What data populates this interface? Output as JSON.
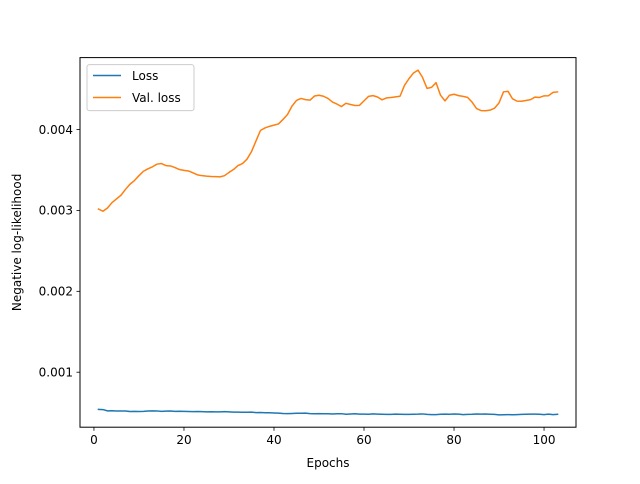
{
  "chart_data": {
    "type": "line",
    "title": "",
    "xlabel": "Epochs",
    "ylabel": "Negative log-likelihood",
    "xlim": [
      -3.1,
      107.1
    ],
    "ylim": [
      0.00032,
      0.00489
    ],
    "x_ticks": [
      0,
      20,
      40,
      60,
      80,
      100
    ],
    "x_tick_labels": [
      "0",
      "20",
      "40",
      "60",
      "80",
      "100"
    ],
    "y_ticks": [
      0.001,
      0.002,
      0.003,
      0.004
    ],
    "y_tick_labels": [
      "0.001",
      "0.002",
      "0.003",
      "0.004"
    ],
    "grid": false,
    "legend_position": "upper-left",
    "series": [
      {
        "name": "Loss",
        "color": "#1f77b4",
        "x": [
          1,
          2,
          3,
          4,
          5,
          6,
          7,
          8,
          9,
          10,
          11,
          12,
          13,
          14,
          15,
          16,
          17,
          18,
          19,
          20,
          21,
          22,
          23,
          24,
          25,
          26,
          27,
          28,
          29,
          30,
          31,
          32,
          33,
          34,
          35,
          36,
          37,
          38,
          39,
          40,
          41,
          42,
          43,
          44,
          45,
          46,
          47,
          48,
          49,
          50,
          51,
          52,
          53,
          54,
          55,
          56,
          57,
          58,
          59,
          60,
          61,
          62,
          63,
          64,
          65,
          66,
          67,
          68,
          69,
          70,
          71,
          72,
          73,
          74,
          75,
          76,
          77,
          78,
          79,
          80,
          81,
          82,
          83,
          84,
          85,
          86,
          87,
          88,
          89,
          90,
          91,
          92,
          93,
          94,
          95,
          96,
          97,
          98,
          99,
          100,
          101,
          102,
          103
        ],
        "y": [
          0.00054,
          0.000538,
          0.000522,
          0.000524,
          0.00052,
          0.000521,
          0.00052,
          0.000514,
          0.000516,
          0.000514,
          0.000516,
          0.00052,
          0.000522,
          0.000521,
          0.000515,
          0.000519,
          0.00052,
          0.000516,
          0.000518,
          0.000516,
          0.000514,
          0.000513,
          0.000514,
          0.000512,
          0.00051,
          0.000511,
          0.000509,
          0.00051,
          0.000512,
          0.000509,
          0.000506,
          0.000506,
          0.000505,
          0.000505,
          0.000506,
          0.0005,
          0.000502,
          0.000499,
          0.000498,
          0.000496,
          0.000494,
          0.00049,
          0.000488,
          0.00049,
          0.000492,
          0.000493,
          0.000494,
          0.000488,
          0.000487,
          0.000488,
          0.000486,
          0.000487,
          0.000484,
          0.000486,
          0.000487,
          0.00048,
          0.000484,
          0.000486,
          0.000482,
          0.000481,
          0.00048,
          0.000485,
          0.000482,
          0.00048,
          0.000478,
          0.000479,
          0.000481,
          0.00048,
          0.000478,
          0.000478,
          0.00048,
          0.000481,
          0.000484,
          0.000478,
          0.000476,
          0.000475,
          0.00048,
          0.000482,
          0.00048,
          0.000484,
          0.000482,
          0.000476,
          0.000478,
          0.00048,
          0.000484,
          0.000481,
          0.000483,
          0.00048,
          0.000478,
          0.000472,
          0.000474,
          0.000476,
          0.000474,
          0.000476,
          0.000478,
          0.00048,
          0.000481,
          0.000482,
          0.00048,
          0.000475,
          0.000481,
          0.000476,
          0.000479
        ]
      },
      {
        "name": "Val. loss",
        "color": "#ff7f0e",
        "x": [
          1,
          2,
          3,
          4,
          5,
          6,
          7,
          8,
          9,
          10,
          11,
          12,
          13,
          14,
          15,
          16,
          17,
          18,
          19,
          20,
          21,
          22,
          23,
          24,
          25,
          26,
          27,
          28,
          29,
          30,
          31,
          32,
          33,
          34,
          35,
          36,
          37,
          38,
          39,
          40,
          41,
          42,
          43,
          44,
          45,
          46,
          47,
          48,
          49,
          50,
          51,
          52,
          53,
          54,
          55,
          56,
          57,
          58,
          59,
          60,
          61,
          62,
          63,
          64,
          65,
          66,
          67,
          68,
          69,
          70,
          71,
          72,
          73,
          74,
          75,
          76,
          77,
          78,
          79,
          80,
          81,
          82,
          83,
          84,
          85,
          86,
          87,
          88,
          89,
          90,
          91,
          92,
          93,
          94,
          95,
          96,
          97,
          98,
          99,
          100,
          101,
          102,
          103
        ],
        "y": [
          0.003017,
          0.00299,
          0.00303,
          0.003096,
          0.003143,
          0.003188,
          0.00326,
          0.003324,
          0.00337,
          0.00343,
          0.003485,
          0.003515,
          0.00354,
          0.003572,
          0.00358,
          0.003555,
          0.00355,
          0.00353,
          0.003506,
          0.003496,
          0.003488,
          0.003465,
          0.00344,
          0.00343,
          0.003424,
          0.00342,
          0.003418,
          0.003415,
          0.00343,
          0.00347,
          0.003506,
          0.003555,
          0.00358,
          0.003634,
          0.003727,
          0.00386,
          0.00399,
          0.00402,
          0.00404,
          0.004055,
          0.00407,
          0.004125,
          0.004187,
          0.00429,
          0.00436,
          0.004385,
          0.00437,
          0.004364,
          0.004415,
          0.004425,
          0.004412,
          0.004385,
          0.00434,
          0.004315,
          0.004285,
          0.004325,
          0.00431,
          0.004298,
          0.0043,
          0.004355,
          0.00441,
          0.00442,
          0.004403,
          0.004368,
          0.004392,
          0.004396,
          0.004404,
          0.004412,
          0.004547,
          0.00463,
          0.0047,
          0.004735,
          0.004645,
          0.00451,
          0.004522,
          0.00458,
          0.004425,
          0.004355,
          0.004425,
          0.004437,
          0.00442,
          0.00441,
          0.004398,
          0.00434,
          0.00426,
          0.004235,
          0.004233,
          0.00424,
          0.004264,
          0.00433,
          0.004467,
          0.004473,
          0.00438,
          0.004352,
          0.00435,
          0.00436,
          0.00437,
          0.004402,
          0.004397,
          0.004417,
          0.004419,
          0.00446,
          0.004466
        ]
      }
    ]
  }
}
